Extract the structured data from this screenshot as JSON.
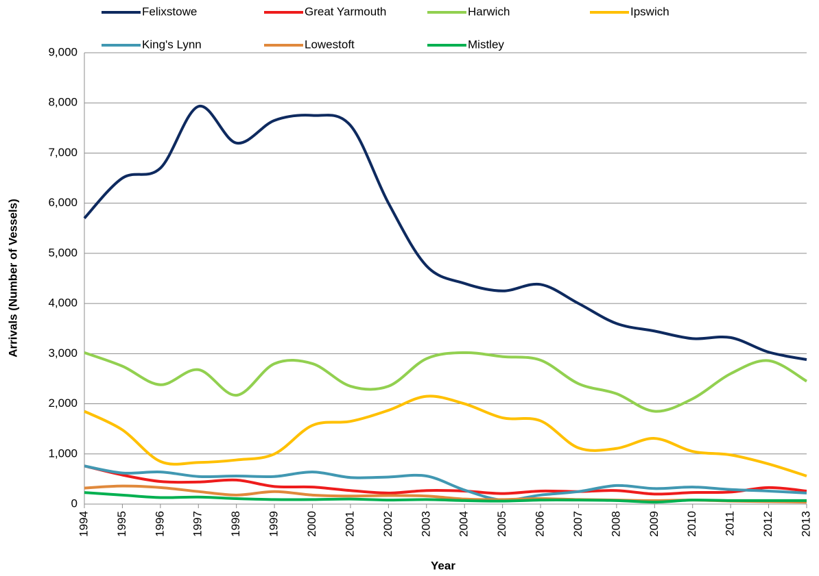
{
  "chart_data": {
    "type": "line",
    "x_label": "Year",
    "y_label": "Arrivals (Number of Vessels)",
    "categories": [
      "1994",
      "1995",
      "1996",
      "1997",
      "1998",
      "1999",
      "2000",
      "2001",
      "2002",
      "2003",
      "2004",
      "2005",
      "2006",
      "2007",
      "2008",
      "2009",
      "2010",
      "2011",
      "2012",
      "2013"
    ],
    "series": [
      {
        "name": "Felixstowe",
        "color": "#0e2a5f",
        "values": [
          5700,
          6500,
          6700,
          7930,
          7200,
          7650,
          7750,
          7550,
          6000,
          4750,
          4400,
          4250,
          4380,
          4000,
          3600,
          3450,
          3300,
          3320,
          3030,
          2880
        ]
      },
      {
        "name": "Great Yarmouth",
        "color": "#ee1c1c",
        "values": [
          760,
          580,
          450,
          440,
          480,
          350,
          340,
          270,
          220,
          270,
          260,
          210,
          260,
          250,
          270,
          200,
          230,
          240,
          330,
          260
        ]
      },
      {
        "name": "Harwich",
        "color": "#92d050",
        "values": [
          3020,
          2750,
          2380,
          2680,
          2170,
          2800,
          2800,
          2350,
          2350,
          2900,
          3020,
          2940,
          2870,
          2400,
          2200,
          1850,
          2100,
          2600,
          2860,
          2450
        ]
      },
      {
        "name": "Ipswich",
        "color": "#ffc000",
        "values": [
          1850,
          1480,
          850,
          830,
          880,
          1000,
          1570,
          1650,
          1870,
          2150,
          2000,
          1720,
          1660,
          1120,
          1110,
          1310,
          1050,
          980,
          800,
          560
        ]
      },
      {
        "name": "King's Lynn",
        "color": "#4198b2",
        "values": [
          760,
          620,
          640,
          550,
          560,
          550,
          640,
          530,
          540,
          560,
          280,
          80,
          180,
          250,
          370,
          310,
          340,
          290,
          260,
          220
        ]
      },
      {
        "name": "Lowestoft",
        "color": "#e0893c",
        "values": [
          320,
          360,
          330,
          250,
          180,
          250,
          180,
          160,
          170,
          160,
          100,
          90,
          110,
          90,
          80,
          70,
          80,
          60,
          50,
          40
        ]
      },
      {
        "name": "Mistley",
        "color": "#00b050",
        "values": [
          230,
          180,
          130,
          140,
          110,
          90,
          90,
          100,
          80,
          90,
          70,
          60,
          80,
          80,
          70,
          40,
          80,
          70,
          70,
          70
        ]
      }
    ],
    "ylim": [
      0,
      9000
    ],
    "yticks": [
      0,
      {
        "value": 1000,
        "label": "1,000"
      },
      {
        "value": 2000,
        "label": "2,000"
      },
      {
        "value": 3000,
        "label": "3,000"
      },
      {
        "value": 4000,
        "label": "4,000"
      },
      {
        "value": 5000,
        "label": "5,000"
      },
      {
        "value": 6000,
        "label": "6,000"
      },
      {
        "value": 7000,
        "label": "7,000"
      },
      {
        "value": 8000,
        "label": "8,000"
      },
      {
        "value": 9000,
        "label": "9,000"
      }
    ],
    "grid": true,
    "legend": "top",
    "smooth": true
  }
}
